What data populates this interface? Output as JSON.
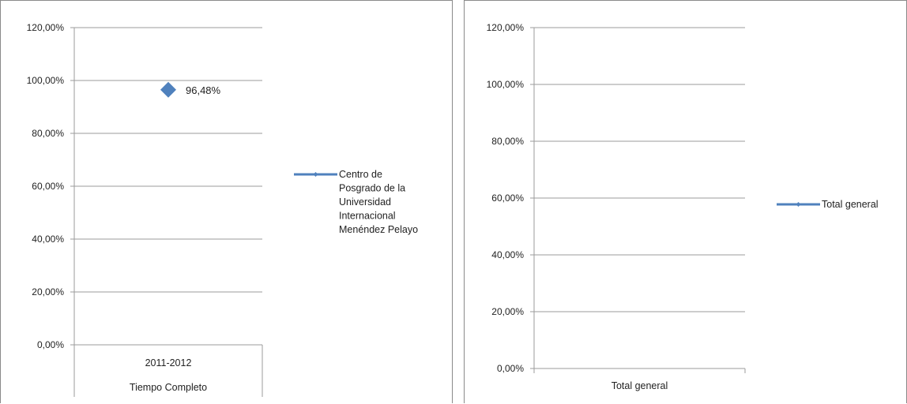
{
  "chart_data": [
    {
      "type": "line",
      "ylim": [
        0,
        1.2
      ],
      "y_ticks": [
        "0,00%",
        "20,00%",
        "40,00%",
        "60,00%",
        "80,00%",
        "100,00%",
        "120,00%"
      ],
      "categories": [
        "2011-2012"
      ],
      "category_group": "Tiempo Completo",
      "series": [
        {
          "name": "Centro de Posgrado de la Universidad Internacional Menéndez Pelayo",
          "legend_lines": [
            "Centro de",
            "Posgrado de la",
            "Universidad",
            "Internacional",
            "Menéndez Pelayo"
          ],
          "values": [
            0.9648
          ],
          "data_labels": [
            "96,48%"
          ],
          "color": "#4f81bd",
          "marker": "diamond"
        }
      ],
      "grid": true,
      "legend_position": "right"
    },
    {
      "type": "line",
      "ylim": [
        0,
        1.2
      ],
      "y_ticks": [
        "0,00%",
        "20,00%",
        "40,00%",
        "60,00%",
        "80,00%",
        "100,00%",
        "120,00%"
      ],
      "categories": [
        "Total general"
      ],
      "series": [
        {
          "name": "Total general",
          "values": [
            null
          ],
          "color": "#4f81bd",
          "marker": "diamond"
        }
      ],
      "grid": true,
      "legend_position": "right"
    }
  ]
}
